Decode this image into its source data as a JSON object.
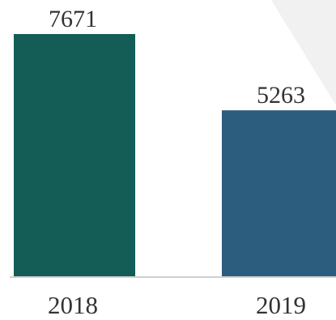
{
  "chart_data": {
    "type": "bar",
    "categories": [
      "2018",
      "2019"
    ],
    "values": [
      7671,
      5263
    ],
    "data_labels": [
      "7671",
      "5263"
    ],
    "bar_colors": [
      "#145c56",
      "#2c5c7e"
    ],
    "title": "",
    "xlabel": "",
    "ylabel": "",
    "ylim": [
      0,
      7671
    ],
    "grid": false,
    "legend": "none"
  },
  "style": {
    "baseline_color": "#d0d0d0",
    "background_decoration_color": "#f1f1f1",
    "text_color": "#333333"
  }
}
